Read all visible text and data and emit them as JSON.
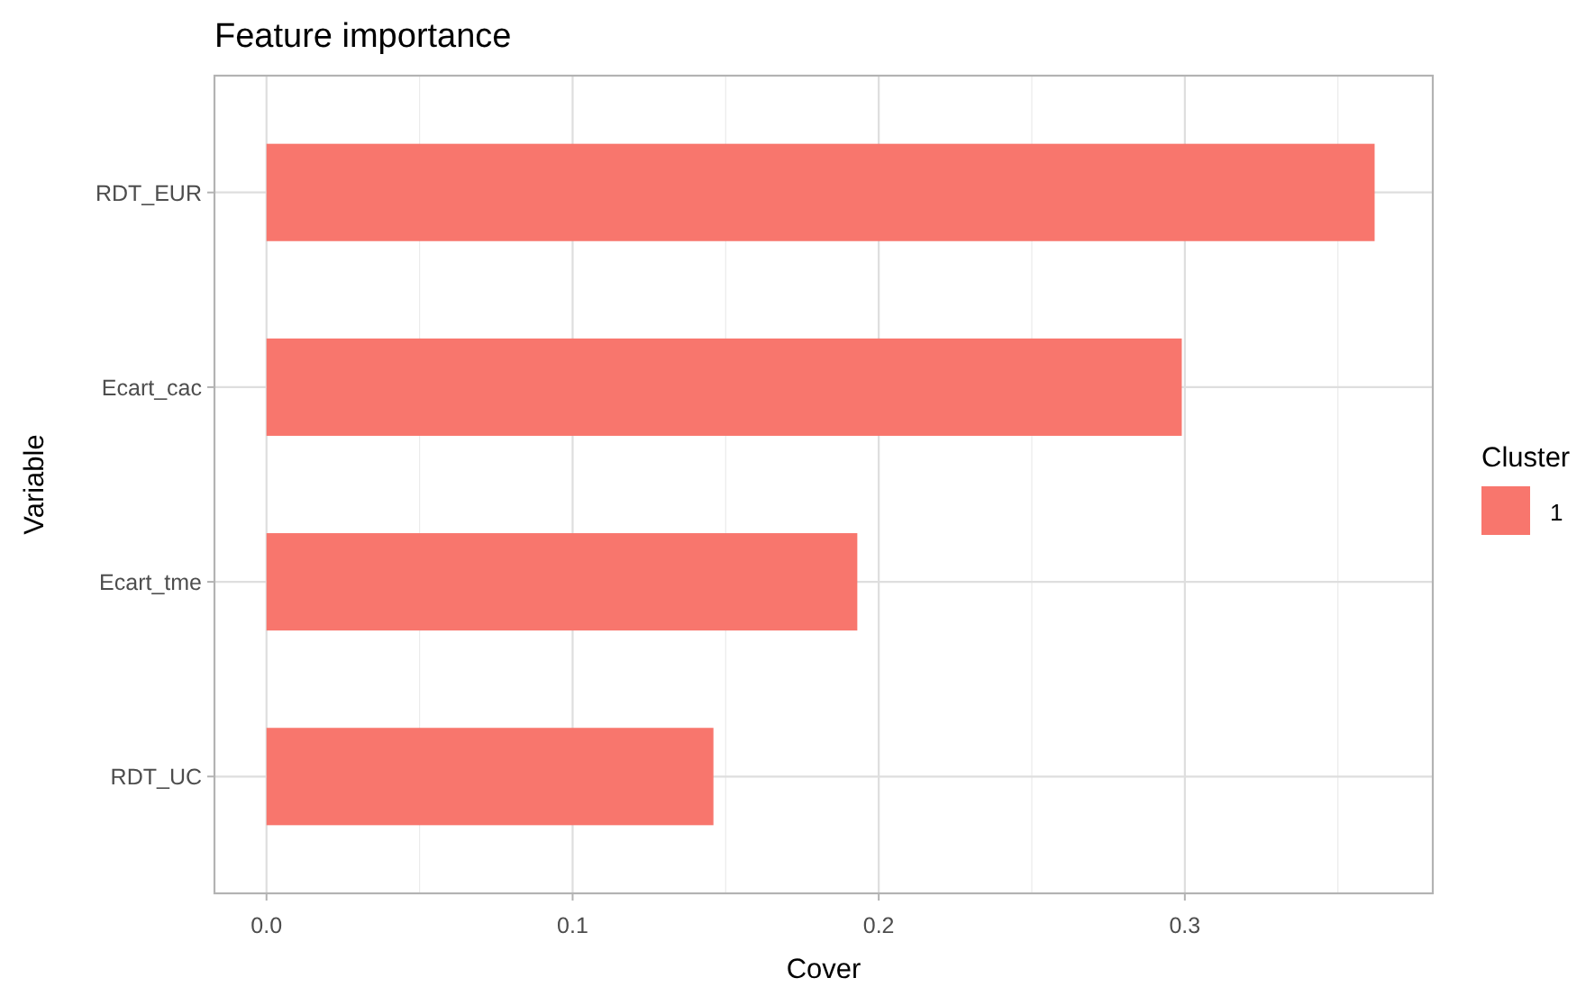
{
  "chart_data": {
    "type": "bar",
    "orientation": "horizontal",
    "title": "Feature importance",
    "xlabel": "Cover",
    "ylabel": "Variable",
    "legend_title": "Cluster",
    "categories": [
      "RDT_EUR",
      "Ecart_cac",
      "Ecart_tme",
      "RDT_UC"
    ],
    "series": [
      {
        "name": "1",
        "color": "#f8766d",
        "values": [
          0.362,
          0.299,
          0.193,
          0.146
        ]
      }
    ],
    "xlim": [
      -0.017,
      0.381
    ],
    "xticks": [
      {
        "value": 0,
        "label": "0.0"
      },
      0.1,
      0.2,
      0.3
    ],
    "grid": true,
    "legend": "right"
  }
}
